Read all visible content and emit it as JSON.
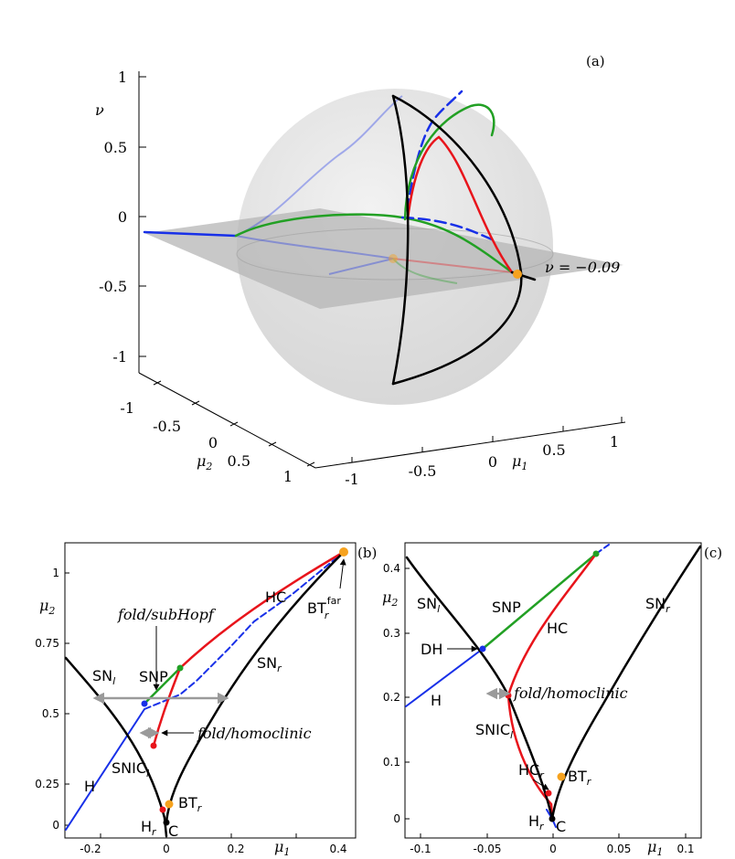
{
  "panel_a": {
    "tag": "(a)",
    "nu_label": "ν",
    "mu1_label": "μ",
    "mu1_sub": "1",
    "mu2_label": "μ",
    "mu2_sub": "2",
    "nu_ticks": [
      "1",
      "0.5",
      "0",
      "-0.5",
      "-1"
    ],
    "mu1_ticks": [
      "-1",
      "-0.5",
      "0",
      "0.5",
      "1"
    ],
    "mu2_ticks": [
      "-1",
      "-0.5",
      "0",
      "0.5",
      "1"
    ],
    "plane_label": "ν = −0.09"
  },
  "panel_b": {
    "tag": "(b)",
    "mu2_label": "μ",
    "mu2_sub": "2",
    "mu1_label": "μ",
    "mu1_sub": "1",
    "y_ticks": [
      "1",
      "0.75",
      "0.5",
      "0.25",
      "0"
    ],
    "x_ticks": [
      "-0.2",
      "0",
      "0.2",
      "0.4"
    ],
    "labels": {
      "fold_subhopf": "fold/subHopf",
      "fold_homoclinic": "fold/homoclinic",
      "hc": "HC",
      "snl": "SN",
      "snl_sub": "l",
      "snr": "SN",
      "snr_sub": "r",
      "snp": "SNP",
      "snic": "SNIC",
      "snic_sub": "l",
      "h": "H",
      "btr": "BT",
      "btr_sub": "r",
      "hr": "H",
      "hr_sub": "r",
      "c": "C",
      "btfar": "BT",
      "btfar_sub": "r",
      "btfar_sup": "far"
    }
  },
  "panel_c": {
    "tag": "(c)",
    "mu2_label": "μ",
    "mu2_sub": "2",
    "mu1_label": "μ",
    "mu1_sub": "1",
    "y_ticks": [
      "0.4",
      "0.3",
      "0.2",
      "0.1",
      "0"
    ],
    "x_ticks": [
      "-0.1",
      "-0.05",
      "0",
      "0.05",
      "0.1"
    ],
    "labels": {
      "snl": "SN",
      "snl_sub": "l",
      "snr": "SN",
      "snr_sub": "r",
      "snp": "SNP",
      "hc": "HC",
      "dh": "DH",
      "h": "H",
      "fold_homoclinic": "fold/homoclinic",
      "snic": "SNIC",
      "snic_sub": "l",
      "hcr": "HC",
      "hcr_sub": "r",
      "btr": "BT",
      "btr_sub": "r",
      "hr": "H",
      "hr_sub": "r",
      "c": "C"
    }
  },
  "colors": {
    "black": "#000000",
    "red": "#e8141b",
    "green": "#22a024",
    "blue": "#1830e8",
    "orange": "#f6a21e",
    "grey_arrow": "#9a9a9a",
    "sphere": "#e4e4e4",
    "plane": "#b7b7b7"
  }
}
